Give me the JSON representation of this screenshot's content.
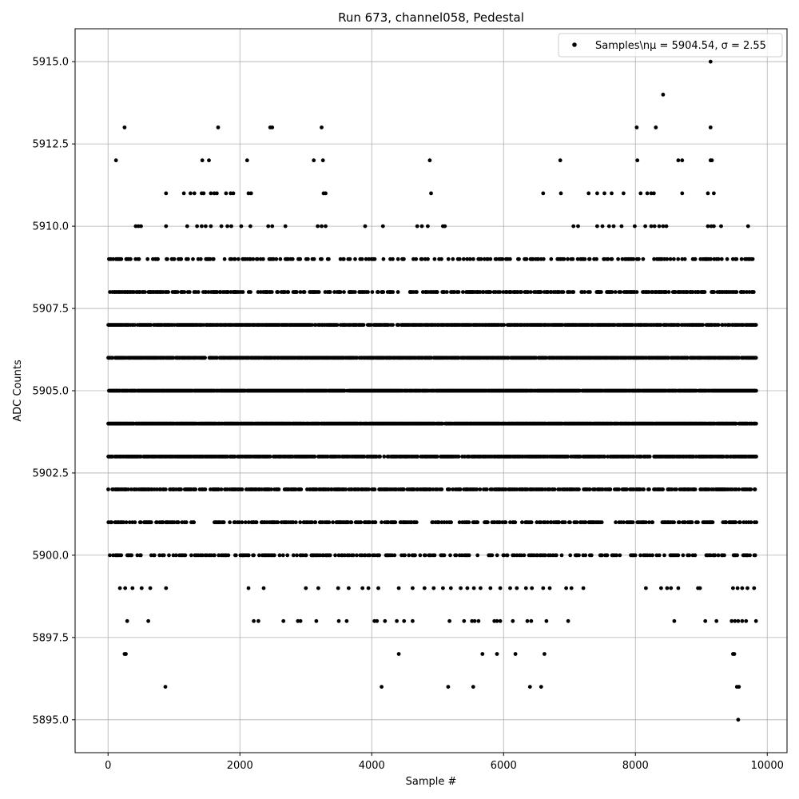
{
  "chart_data": {
    "type": "scatter",
    "title": "Run 673, channel058, Pedestal",
    "xlabel": "Sample #",
    "ylabel": "ADC Counts",
    "xlim": [
      -500,
      10300
    ],
    "ylim": [
      5894,
      5916
    ],
    "xticks": [
      0,
      2000,
      4000,
      6000,
      8000,
      10000
    ],
    "yticks": [
      5895.0,
      5897.5,
      5900.0,
      5902.5,
      5905.0,
      5907.5,
      5910.0,
      5912.5,
      5915.0
    ],
    "xtick_labels": [
      "0",
      "2000",
      "4000",
      "6000",
      "8000",
      "10000"
    ],
    "ytick_labels": [
      "5895.0",
      "5897.5",
      "5900.0",
      "5902.5",
      "5905.0",
      "5907.5",
      "5910.0",
      "5912.5",
      "5915.0"
    ],
    "grid": true,
    "legend_position": "top-right",
    "marker_color": "#000000",
    "series": [
      {
        "name": "Samples\\n$\\mu$ = 5904.54, $\\sigma$ = 2.55",
        "legend_label": "Samples\\nμ = 5904.54, σ = 2.55",
        "segments": [
          {
            "y": 5909,
            "ranges": [
              [
                0,
                9800
              ]
            ],
            "density": 0.3
          },
          {
            "y": 5908,
            "ranges": [
              [
                0,
                9800
              ]
            ],
            "density": 0.45
          },
          {
            "y": 5907,
            "ranges": [
              [
                0,
                9840
              ]
            ],
            "density": 0.8
          },
          {
            "y": 5906,
            "ranges": [
              [
                0,
                9840
              ]
            ],
            "density": 0.85
          },
          {
            "y": 5905,
            "ranges": [
              [
                0,
                9840
              ]
            ],
            "density": 0.95
          },
          {
            "y": 5904,
            "ranges": [
              [
                0,
                9840
              ]
            ],
            "density": 0.95
          },
          {
            "y": 5903,
            "ranges": [
              [
                0,
                9840
              ]
            ],
            "density": 0.8
          },
          {
            "y": 5902,
            "ranges": [
              [
                0,
                9840
              ]
            ],
            "density": 0.6
          },
          {
            "y": 5901,
            "ranges": [
              [
                0,
                1300
              ],
              [
                1600,
                2300
              ],
              [
                2300,
                4700
              ],
              [
                4900,
                7500
              ],
              [
                7700,
                9840
              ]
            ],
            "density": 0.45
          },
          {
            "y": 5900,
            "ranges": [
              [
                0,
                9840
              ]
            ],
            "density": 0.35
          }
        ],
        "points": [
          [
            120,
            5912
          ],
          [
            250,
            5913
          ],
          [
            1670,
            5913
          ],
          [
            1430,
            5912
          ],
          [
            1530,
            5912
          ],
          [
            2110,
            5912
          ],
          [
            2460,
            5913
          ],
          [
            2490,
            5913
          ],
          [
            3120,
            5912
          ],
          [
            3240,
            5913
          ],
          [
            3260,
            5912
          ],
          [
            4880,
            5912
          ],
          [
            6860,
            5912
          ],
          [
            8020,
            5913
          ],
          [
            8030,
            5912
          ],
          [
            8310,
            5913
          ],
          [
            8420,
            5914
          ],
          [
            8650,
            5912
          ],
          [
            8710,
            5912
          ],
          [
            9140,
            5915
          ],
          [
            9140,
            5913
          ],
          [
            9140,
            5912
          ],
          [
            9160,
            5912
          ],
          [
            880,
            5911
          ],
          [
            1150,
            5911
          ],
          [
            1250,
            5911
          ],
          [
            1310,
            5911
          ],
          [
            1420,
            5911
          ],
          [
            1450,
            5911
          ],
          [
            1560,
            5911
          ],
          [
            1610,
            5911
          ],
          [
            1650,
            5911
          ],
          [
            1790,
            5911
          ],
          [
            1860,
            5911
          ],
          [
            1900,
            5911
          ],
          [
            2130,
            5911
          ],
          [
            2170,
            5911
          ],
          [
            3270,
            5911
          ],
          [
            3300,
            5911
          ],
          [
            4900,
            5911
          ],
          [
            6600,
            5911
          ],
          [
            6870,
            5911
          ],
          [
            7290,
            5911
          ],
          [
            7420,
            5911
          ],
          [
            7530,
            5911
          ],
          [
            7640,
            5911
          ],
          [
            7820,
            5911
          ],
          [
            8080,
            5911
          ],
          [
            8180,
            5911
          ],
          [
            8240,
            5911
          ],
          [
            8280,
            5911
          ],
          [
            8710,
            5911
          ],
          [
            9100,
            5911
          ],
          [
            9190,
            5911
          ],
          [
            420,
            5910
          ],
          [
            460,
            5910
          ],
          [
            500,
            5910
          ],
          [
            880,
            5910
          ],
          [
            1200,
            5910
          ],
          [
            1350,
            5910
          ],
          [
            1420,
            5910
          ],
          [
            1480,
            5910
          ],
          [
            1560,
            5910
          ],
          [
            1720,
            5910
          ],
          [
            1810,
            5910
          ],
          [
            1870,
            5910
          ],
          [
            2020,
            5910
          ],
          [
            2160,
            5910
          ],
          [
            2430,
            5910
          ],
          [
            2490,
            5910
          ],
          [
            2690,
            5910
          ],
          [
            3180,
            5910
          ],
          [
            3240,
            5910
          ],
          [
            3300,
            5910
          ],
          [
            3900,
            5910
          ],
          [
            4170,
            5910
          ],
          [
            4690,
            5910
          ],
          [
            4760,
            5910
          ],
          [
            4850,
            5910
          ],
          [
            5080,
            5910
          ],
          [
            5110,
            5910
          ],
          [
            7060,
            5910
          ],
          [
            7130,
            5910
          ],
          [
            7420,
            5910
          ],
          [
            7500,
            5910
          ],
          [
            7600,
            5910
          ],
          [
            7670,
            5910
          ],
          [
            7790,
            5910
          ],
          [
            7990,
            5910
          ],
          [
            8150,
            5910
          ],
          [
            8240,
            5910
          ],
          [
            8290,
            5910
          ],
          [
            8360,
            5910
          ],
          [
            8420,
            5910
          ],
          [
            8470,
            5910
          ],
          [
            9100,
            5910
          ],
          [
            9150,
            5910
          ],
          [
            9190,
            5910
          ],
          [
            9300,
            5910
          ],
          [
            9710,
            5910
          ],
          [
            180,
            5899
          ],
          [
            260,
            5899
          ],
          [
            370,
            5899
          ],
          [
            510,
            5899
          ],
          [
            640,
            5899
          ],
          [
            880,
            5899
          ],
          [
            2130,
            5899
          ],
          [
            2360,
            5899
          ],
          [
            3000,
            5899
          ],
          [
            3190,
            5899
          ],
          [
            3490,
            5899
          ],
          [
            3650,
            5899
          ],
          [
            3860,
            5899
          ],
          [
            3950,
            5899
          ],
          [
            4100,
            5899
          ],
          [
            4410,
            5899
          ],
          [
            4620,
            5899
          ],
          [
            4800,
            5899
          ],
          [
            4940,
            5899
          ],
          [
            5080,
            5899
          ],
          [
            5200,
            5899
          ],
          [
            5350,
            5899
          ],
          [
            5450,
            5899
          ],
          [
            5550,
            5899
          ],
          [
            5650,
            5899
          ],
          [
            5800,
            5899
          ],
          [
            5950,
            5899
          ],
          [
            6100,
            5899
          ],
          [
            6200,
            5899
          ],
          [
            6340,
            5899
          ],
          [
            6430,
            5899
          ],
          [
            6600,
            5899
          ],
          [
            6700,
            5899
          ],
          [
            6950,
            5899
          ],
          [
            7030,
            5899
          ],
          [
            7210,
            5899
          ],
          [
            8160,
            5899
          ],
          [
            8390,
            5899
          ],
          [
            8480,
            5899
          ],
          [
            8540,
            5899
          ],
          [
            8650,
            5899
          ],
          [
            8950,
            5899
          ],
          [
            8980,
            5899
          ],
          [
            9480,
            5899
          ],
          [
            9550,
            5899
          ],
          [
            9620,
            5899
          ],
          [
            9700,
            5899
          ],
          [
            9800,
            5899
          ],
          [
            290,
            5898
          ],
          [
            610,
            5898
          ],
          [
            2210,
            5898
          ],
          [
            2280,
            5898
          ],
          [
            2660,
            5898
          ],
          [
            2880,
            5898
          ],
          [
            2920,
            5898
          ],
          [
            3160,
            5898
          ],
          [
            3500,
            5898
          ],
          [
            3620,
            5898
          ],
          [
            4040,
            5898
          ],
          [
            4080,
            5898
          ],
          [
            4200,
            5898
          ],
          [
            4380,
            5898
          ],
          [
            4490,
            5898
          ],
          [
            4620,
            5898
          ],
          [
            5180,
            5898
          ],
          [
            5400,
            5898
          ],
          [
            5520,
            5898
          ],
          [
            5560,
            5898
          ],
          [
            5620,
            5898
          ],
          [
            5860,
            5898
          ],
          [
            5900,
            5898
          ],
          [
            5950,
            5898
          ],
          [
            6140,
            5898
          ],
          [
            6360,
            5898
          ],
          [
            6420,
            5898
          ],
          [
            6650,
            5898
          ],
          [
            6980,
            5898
          ],
          [
            8590,
            5898
          ],
          [
            9060,
            5898
          ],
          [
            9230,
            5898
          ],
          [
            9460,
            5898
          ],
          [
            9510,
            5898
          ],
          [
            9560,
            5898
          ],
          [
            9620,
            5898
          ],
          [
            9680,
            5898
          ],
          [
            9830,
            5898
          ],
          [
            250,
            5897
          ],
          [
            270,
            5897
          ],
          [
            4410,
            5897
          ],
          [
            5680,
            5897
          ],
          [
            5900,
            5897
          ],
          [
            6180,
            5897
          ],
          [
            6620,
            5897
          ],
          [
            9480,
            5897
          ],
          [
            9500,
            5897
          ],
          [
            870,
            5896
          ],
          [
            4150,
            5896
          ],
          [
            5160,
            5896
          ],
          [
            5540,
            5896
          ],
          [
            6400,
            5896
          ],
          [
            6570,
            5896
          ],
          [
            9540,
            5896
          ],
          [
            9570,
            5896
          ],
          [
            9560,
            5895
          ]
        ]
      }
    ]
  }
}
